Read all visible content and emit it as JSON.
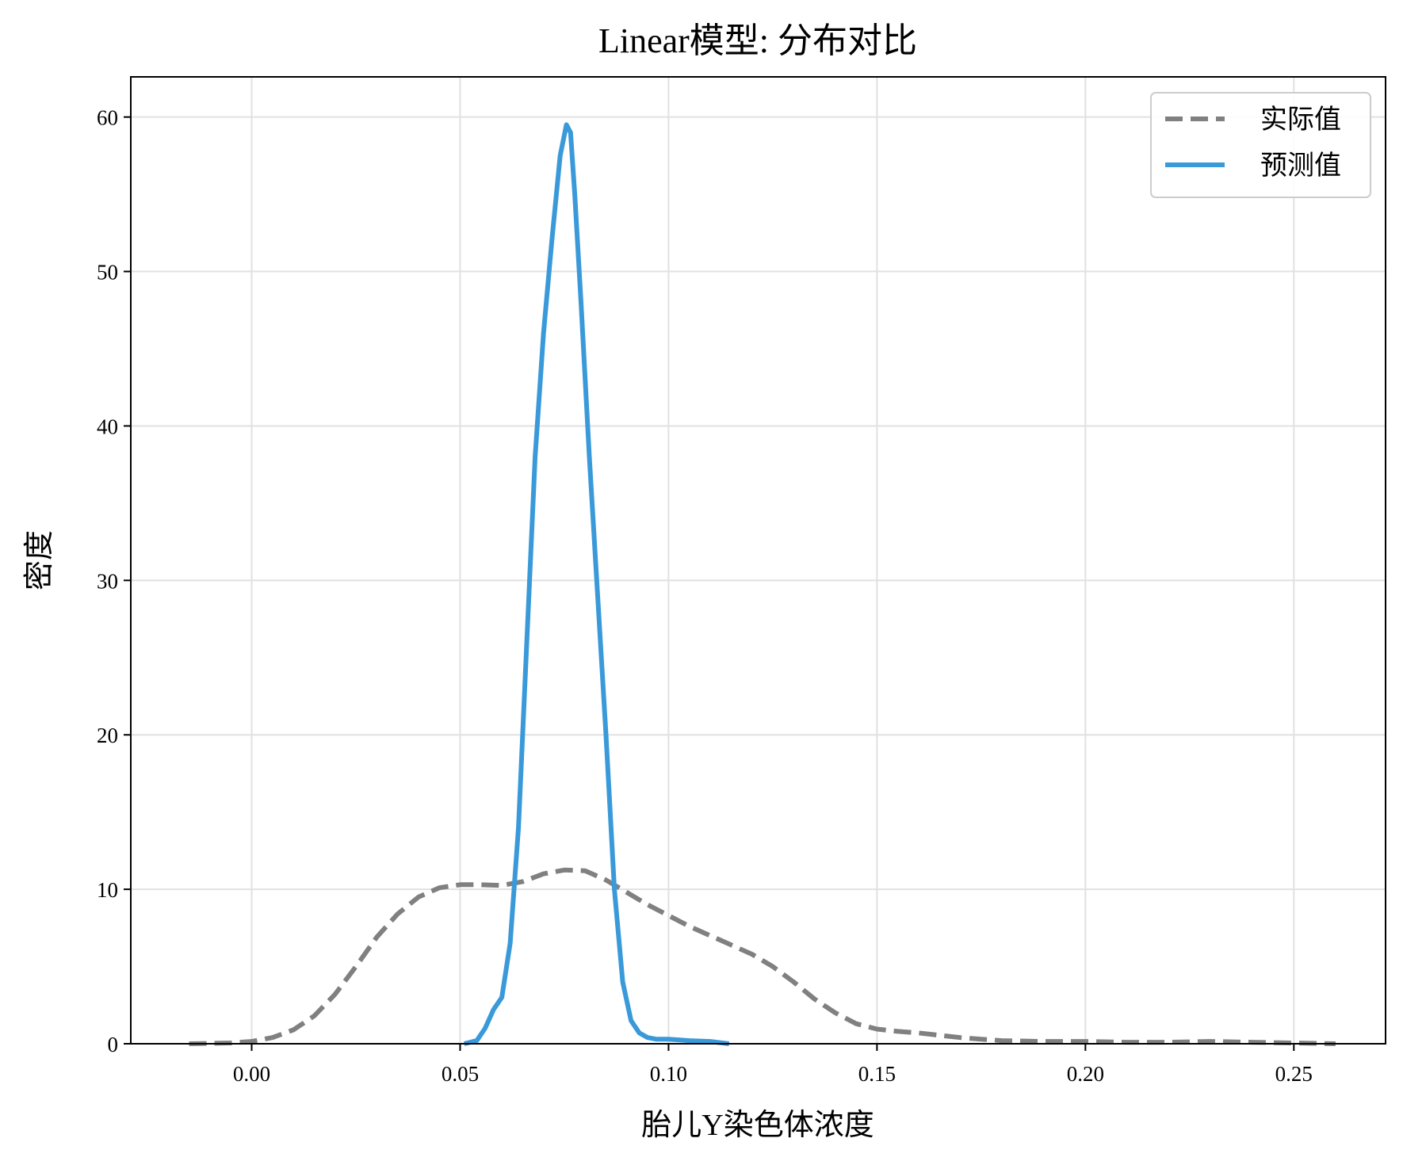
{
  "chart_data": {
    "type": "line",
    "title": "Linear模型: 分布对比",
    "xlabel": "胎儿Y染色体浓度",
    "ylabel": "密度",
    "xlim": [
      -0.029,
      0.272
    ],
    "ylim": [
      0,
      62.6
    ],
    "xticks": [
      0.0,
      0.05,
      0.1,
      0.15,
      0.2,
      0.25
    ],
    "xtick_labels": [
      "0.00",
      "0.05",
      "0.10",
      "0.15",
      "0.20",
      "0.25"
    ],
    "yticks": [
      0,
      10,
      20,
      30,
      40,
      50,
      60
    ],
    "ytick_labels": [
      "0",
      "10",
      "20",
      "30",
      "40",
      "50",
      "60"
    ],
    "grid": true,
    "legend_position": "top-right",
    "series": [
      {
        "name": "实际值",
        "color": "#808080",
        "style": "dashed",
        "x": [
          -0.015,
          -0.005,
          0.0,
          0.005,
          0.01,
          0.015,
          0.02,
          0.025,
          0.03,
          0.035,
          0.04,
          0.045,
          0.05,
          0.055,
          0.06,
          0.065,
          0.07,
          0.075,
          0.08,
          0.085,
          0.09,
          0.095,
          0.1,
          0.105,
          0.11,
          0.115,
          0.12,
          0.125,
          0.13,
          0.135,
          0.14,
          0.145,
          0.15,
          0.155,
          0.16,
          0.165,
          0.17,
          0.175,
          0.18,
          0.19,
          0.2,
          0.21,
          0.22,
          0.23,
          0.24,
          0.25,
          0.26
        ],
        "y": [
          0.0,
          0.05,
          0.15,
          0.4,
          0.9,
          1.8,
          3.2,
          5.0,
          6.9,
          8.4,
          9.5,
          10.1,
          10.3,
          10.3,
          10.25,
          10.5,
          11.0,
          11.25,
          11.2,
          10.6,
          9.8,
          9.0,
          8.3,
          7.6,
          7.0,
          6.4,
          5.8,
          5.0,
          4.0,
          2.9,
          2.0,
          1.3,
          0.95,
          0.8,
          0.7,
          0.55,
          0.4,
          0.3,
          0.2,
          0.15,
          0.15,
          0.1,
          0.1,
          0.15,
          0.1,
          0.05,
          0.0
        ]
      },
      {
        "name": "预测值",
        "color": "#3a9ad9",
        "style": "solid",
        "x": [
          0.051,
          0.054,
          0.056,
          0.058,
          0.06,
          0.062,
          0.064,
          0.066,
          0.068,
          0.07,
          0.072,
          0.074,
          0.0755,
          0.0765,
          0.0775,
          0.079,
          0.081,
          0.083,
          0.085,
          0.087,
          0.089,
          0.091,
          0.093,
          0.095,
          0.097,
          0.1,
          0.105,
          0.11,
          0.1145
        ],
        "y": [
          0.0,
          0.2,
          1.0,
          2.2,
          3.0,
          6.5,
          14.0,
          26.0,
          38.0,
          46.0,
          52.0,
          57.5,
          59.5,
          59.0,
          55.0,
          48.0,
          38.0,
          29.0,
          20.0,
          10.0,
          4.0,
          1.5,
          0.7,
          0.4,
          0.3,
          0.3,
          0.2,
          0.15,
          0.0
        ]
      }
    ]
  }
}
